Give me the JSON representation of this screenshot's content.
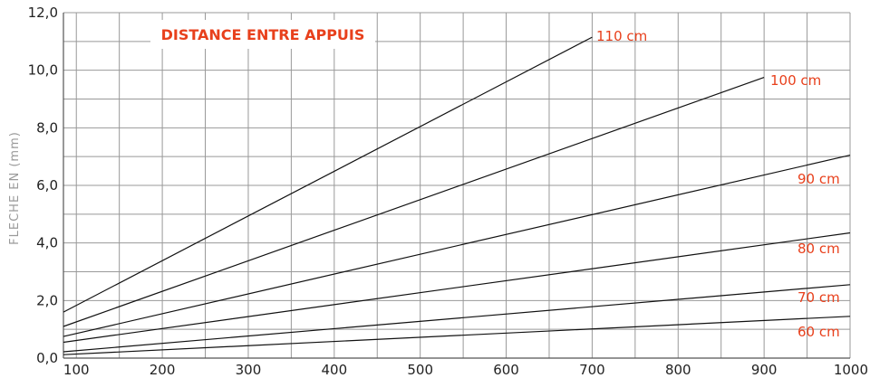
{
  "chart_data": {
    "type": "line",
    "title": "DISTANCE ENTRE APPUIS",
    "xlabel": "",
    "ylabel": "FLECHE EN (mm)",
    "xlim": [
      85,
      1000
    ],
    "ylim": [
      0,
      12
    ],
    "x_ticks": [
      100,
      200,
      300,
      400,
      500,
      600,
      700,
      800,
      900,
      1000
    ],
    "x_tick_labels": [
      "100",
      "200",
      "300",
      "400",
      "500",
      "600",
      "700",
      "800",
      "900",
      "1000"
    ],
    "y_ticks": [
      0,
      2,
      4,
      6,
      8,
      10,
      12
    ],
    "y_tick_labels": [
      "0,0",
      "2,0",
      "4,0",
      "6,0",
      "8,0",
      "10,0",
      "12,0"
    ],
    "grid": true,
    "colors": {
      "line": "#111111",
      "grid": "#999999",
      "accent": "#e8401c"
    },
    "series": [
      {
        "name": "60 cm",
        "x": [
          85,
          1000
        ],
        "y": [
          0.12,
          1.45
        ]
      },
      {
        "name": "70 cm",
        "x": [
          85,
          1000
        ],
        "y": [
          0.22,
          2.55
        ]
      },
      {
        "name": "80 cm",
        "x": [
          85,
          1000
        ],
        "y": [
          0.55,
          4.35
        ]
      },
      {
        "name": "90 cm",
        "x": [
          85,
          1000
        ],
        "y": [
          0.75,
          7.05
        ]
      },
      {
        "name": "100 cm",
        "x": [
          85,
          900
        ],
        "y": [
          1.1,
          9.75
        ]
      },
      {
        "name": "110 cm",
        "x": [
          85,
          700
        ],
        "y": [
          1.6,
          11.15
        ]
      }
    ]
  }
}
